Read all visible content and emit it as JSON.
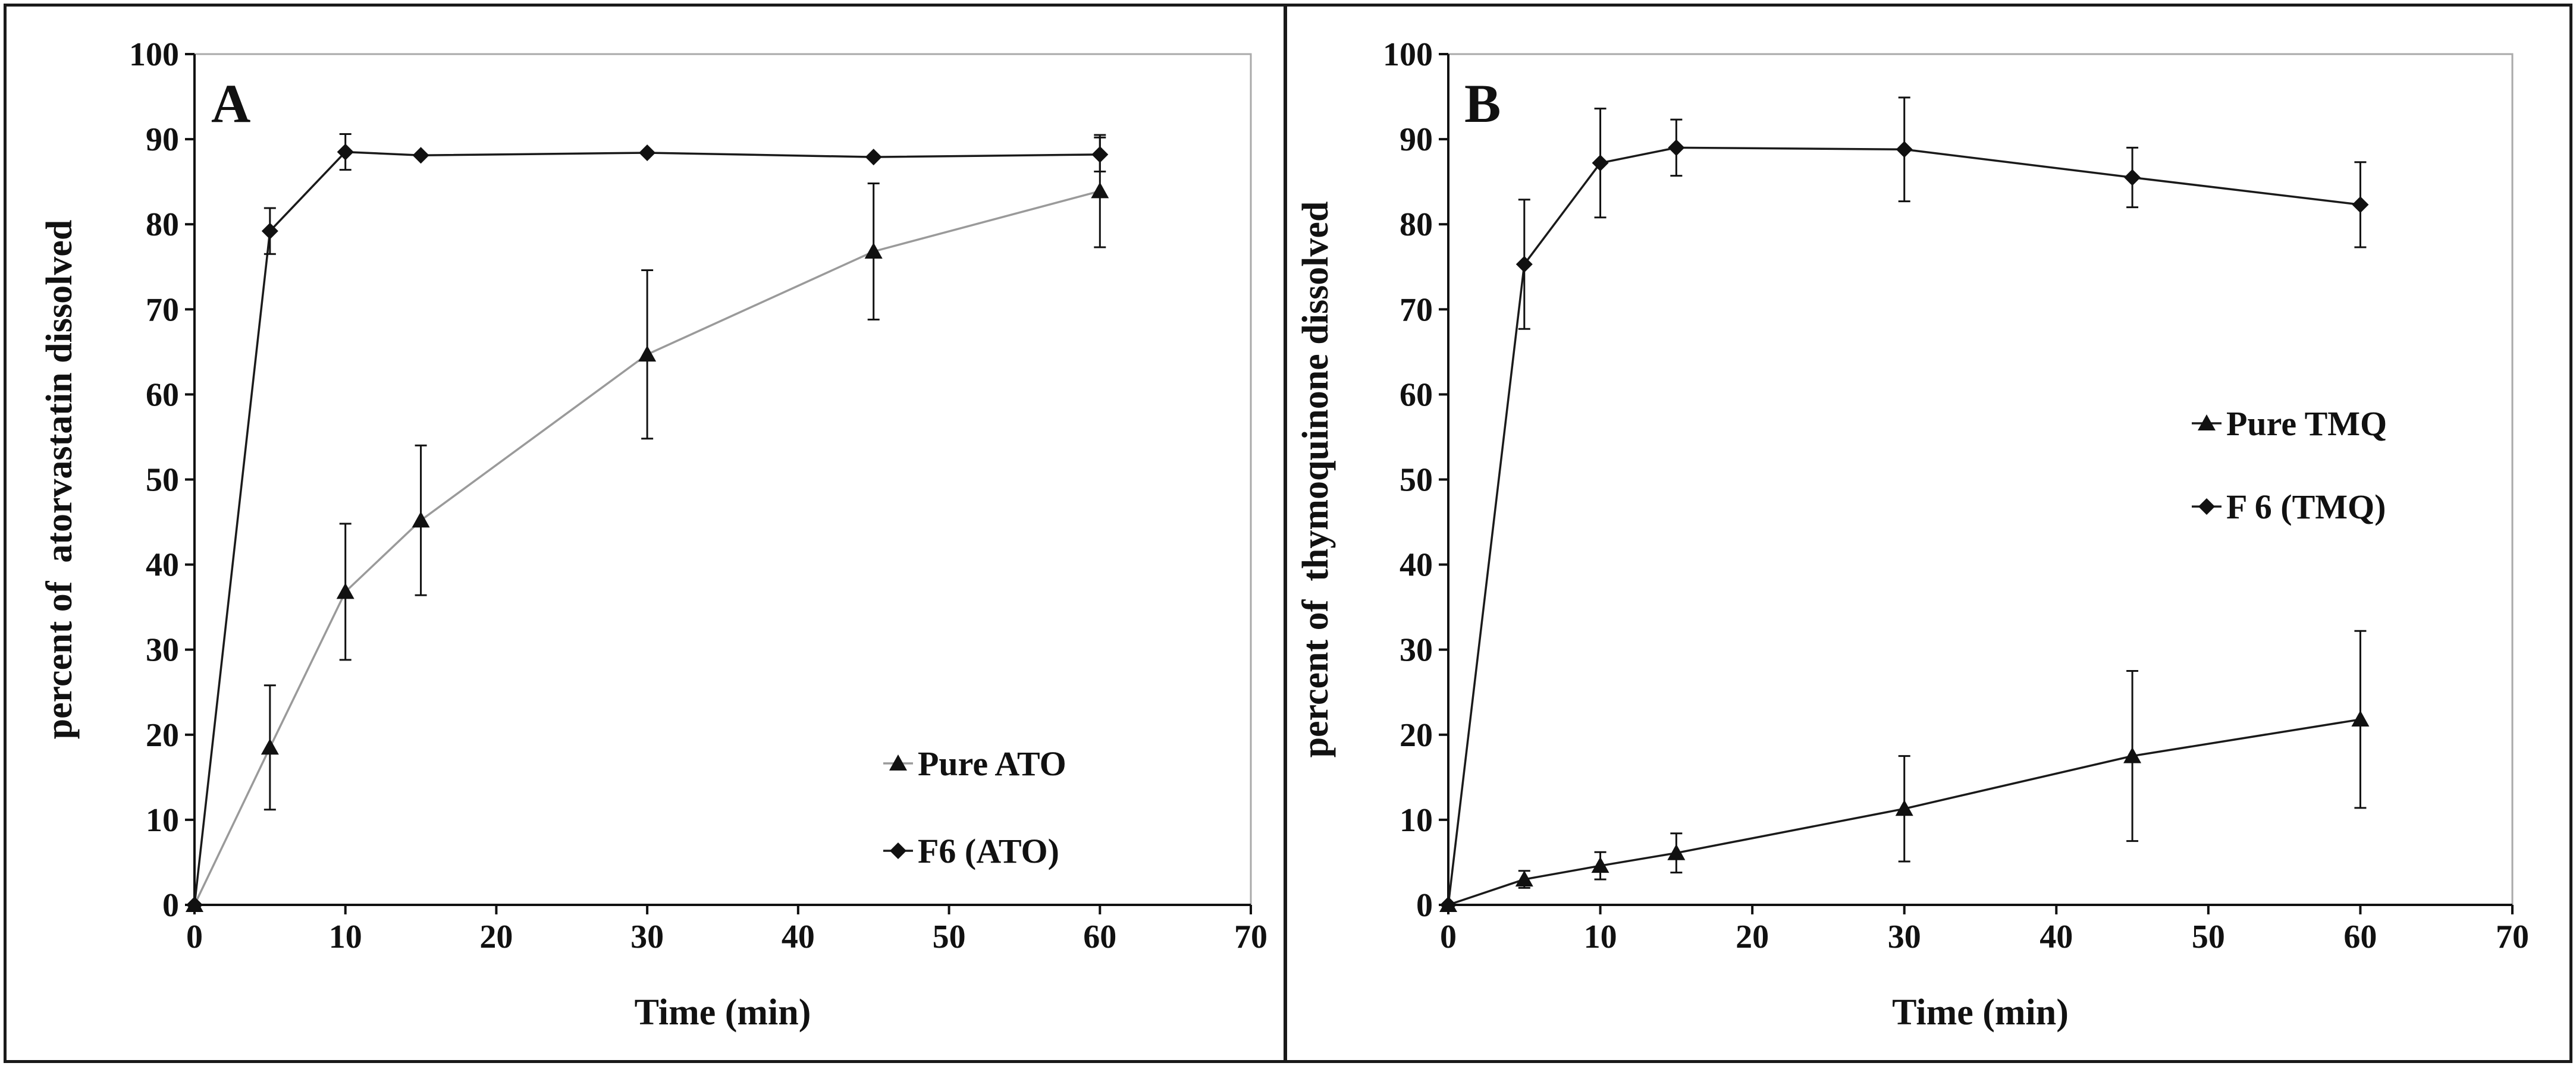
{
  "chart_data": [
    {
      "type": "line",
      "panel_label": "A",
      "xlabel": "Time (min)",
      "ylabel": "percent of  atorvastatin dissolved",
      "xlim": [
        0,
        70
      ],
      "ylim": [
        0,
        100
      ],
      "x_ticks": [
        0,
        10,
        20,
        30,
        40,
        50,
        60,
        70
      ],
      "y_ticks": [
        0,
        10,
        20,
        30,
        40,
        50,
        60,
        70,
        80,
        90,
        100
      ],
      "legend_position": "bottom-right",
      "series": [
        {
          "name": "Pure ATO",
          "marker": "triangle",
          "color": "#9a9a9a",
          "x": [
            0,
            5,
            10,
            15,
            30,
            45,
            60
          ],
          "y": [
            0,
            18.5,
            36.8,
            45.2,
            64.7,
            76.8,
            83.9
          ],
          "err": [
            0,
            7.3,
            8,
            8.8,
            9.9,
            8,
            6.6
          ]
        },
        {
          "name": "F6 (ATO)",
          "marker": "diamond",
          "color": "#1a1a1a",
          "x": [
            0,
            5,
            10,
            15,
            30,
            45,
            60
          ],
          "y": [
            0,
            79.2,
            88.5,
            88.1,
            88.4,
            87.9,
            88.2
          ],
          "err": [
            0,
            2.7,
            2.1,
            0,
            0,
            0,
            2
          ]
        }
      ]
    },
    {
      "type": "line",
      "panel_label": "B",
      "xlabel": "Time (min)",
      "ylabel": "percent of  thymoquinone dissolved",
      "xlim": [
        0,
        70
      ],
      "ylim": [
        0,
        100
      ],
      "x_ticks": [
        0,
        10,
        20,
        30,
        40,
        50,
        60,
        70
      ],
      "y_ticks": [
        0,
        10,
        20,
        30,
        40,
        50,
        60,
        70,
        80,
        90,
        100
      ],
      "legend_position": "center-right",
      "series": [
        {
          "name": "Pure TMQ",
          "marker": "triangle",
          "color": "#1a1a1a",
          "x": [
            0,
            5,
            10,
            15,
            30,
            45,
            60
          ],
          "y": [
            0,
            3,
            4.6,
            6.1,
            11.3,
            17.5,
            21.8
          ],
          "err": [
            0,
            1,
            1.6,
            2.3,
            6.2,
            10,
            10.4
          ]
        },
        {
          "name": "F 6 (TMQ)",
          "marker": "diamond",
          "color": "#1a1a1a",
          "x": [
            0,
            5,
            10,
            15,
            30,
            45,
            60
          ],
          "y": [
            0,
            75.3,
            87.2,
            89,
            88.8,
            85.5,
            82.3
          ],
          "err": [
            0,
            7.6,
            6.4,
            3.3,
            6.1,
            3.5,
            5
          ]
        }
      ]
    }
  ]
}
